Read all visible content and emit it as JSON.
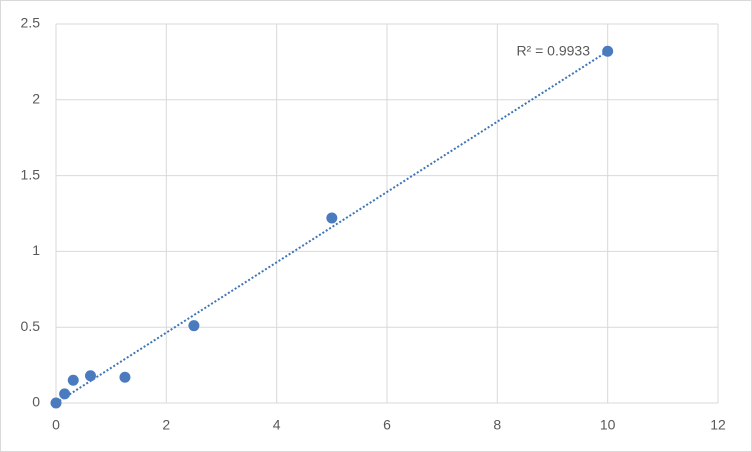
{
  "chart_data": {
    "type": "scatter",
    "x": [
      0,
      0.156,
      0.3125,
      0.625,
      1.25,
      2.5,
      5,
      10
    ],
    "series": [
      {
        "color": "#4a7bbf",
        "values": [
          0,
          0.06,
          0.15,
          0.18,
          0.17,
          0.51,
          1.22,
          2.32
        ]
      }
    ],
    "trendline": {
      "x": [
        0,
        10
      ],
      "y": [
        0,
        2.32
      ],
      "color": "#3e75b8"
    },
    "annotation": "R² = 0.9933",
    "xlim": [
      0,
      12
    ],
    "xticks": [
      0,
      2,
      4,
      6,
      8,
      10,
      12
    ],
    "ylim": [
      0,
      2.5
    ],
    "yticks": [
      0,
      0.5,
      1,
      1.5,
      2,
      2.5
    ],
    "grid": true
  }
}
